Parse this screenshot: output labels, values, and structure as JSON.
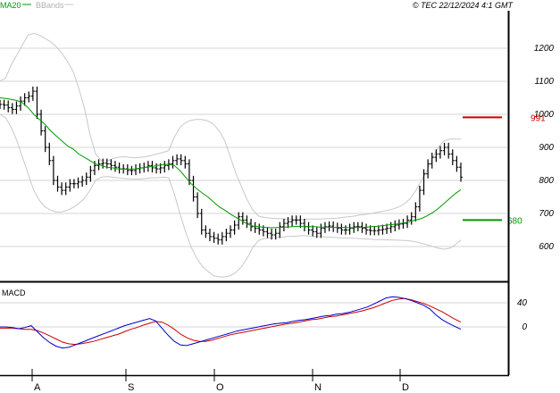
{
  "header": {
    "legend_ma": "MA20",
    "legend_bb": "BBands",
    "copyright": "© TEC 22/12/2024 4:1 GMT"
  },
  "colors": {
    "ma": "#009900",
    "bbands": "#c8c8c8",
    "candles": "#000000",
    "grid": "#d4d4d4",
    "resistance": "#cc0000",
    "support": "#009900",
    "macd": "#0000cc",
    "signal": "#cc0000"
  },
  "chart_data": [
    {
      "type": "line",
      "title": "",
      "x_labels": [
        "A",
        "S",
        "O",
        "N",
        "D"
      ],
      "y_ticks": [
        "1200",
        "1100",
        "1000",
        "900",
        "800",
        "700",
        "600"
      ],
      "ylim": [
        520,
        1240
      ],
      "grid": true,
      "levels": [
        {
          "label": "991",
          "value": 991,
          "color": "#cc0000"
        },
        {
          "label": "680",
          "value": 680,
          "color": "#009900"
        }
      ],
      "series": [
        {
          "name": "MA20",
          "values": [
            1050,
            1048,
            1045,
            1042,
            1035,
            1020,
            1000,
            985,
            970,
            950,
            935,
            920,
            905,
            895,
            880,
            870,
            860,
            850,
            845,
            840,
            838,
            835,
            834,
            834,
            835,
            837,
            840,
            842,
            845,
            848,
            849,
            845,
            830,
            810,
            790,
            775,
            762,
            750,
            735,
            720,
            710,
            698,
            688,
            678,
            668,
            662,
            660,
            658,
            657,
            657,
            658,
            659,
            660,
            661,
            661,
            660,
            660,
            659,
            659,
            658,
            658,
            658,
            657,
            657,
            658,
            658,
            660,
            661,
            663,
            665,
            667,
            669,
            672,
            676,
            680,
            685,
            693,
            703,
            715,
            730,
            745,
            760,
            772
          ]
        },
        {
          "name": "BBands upper",
          "values": [
            1100,
            1110,
            1150,
            1180,
            1210,
            1240,
            1245,
            1240,
            1230,
            1220,
            1205,
            1185,
            1160,
            1130,
            1080,
            1020,
            940,
            880,
            860,
            858,
            865,
            870,
            872,
            870,
            868,
            870,
            872,
            876,
            880,
            885,
            890,
            930,
            960,
            975,
            982,
            985,
            984,
            980,
            970,
            950,
            920,
            870,
            820,
            780,
            740,
            710,
            692,
            688,
            686,
            685,
            684,
            683,
            683,
            682,
            682,
            683,
            683,
            683,
            684,
            685,
            686,
            688,
            690,
            692,
            695,
            697,
            700,
            703,
            706,
            710,
            714,
            720,
            730,
            745,
            770,
            800,
            830,
            870,
            900,
            920,
            925,
            925,
            925
          ]
        },
        {
          "name": "BBands lower",
          "values": [
            1000,
            990,
            960,
            920,
            870,
            820,
            770,
            740,
            720,
            710,
            705,
            705,
            710,
            718,
            730,
            745,
            770,
            800,
            810,
            812,
            810,
            808,
            806,
            805,
            804,
            804,
            806,
            808,
            808,
            810,
            808,
            760,
            700,
            645,
            598,
            565,
            540,
            525,
            512,
            508,
            508,
            512,
            522,
            540,
            565,
            598,
            618,
            624,
            626,
            627,
            628,
            630,
            631,
            632,
            633,
            632,
            631,
            630,
            629,
            628,
            627,
            626,
            626,
            625,
            624,
            623,
            622,
            621,
            621,
            620,
            620,
            619,
            618,
            617,
            614,
            610,
            605,
            600,
            595,
            592,
            595,
            605,
            620
          ]
        },
        {
          "name": "Price",
          "values": [
            1030,
            1028,
            1020,
            1015,
            1025,
            1040,
            1050,
            1055,
            1070,
            1000,
            950,
            900,
            860,
            800,
            780,
            770,
            780,
            790,
            790,
            795,
            800,
            810,
            830,
            845,
            850,
            852,
            850,
            845,
            840,
            835,
            835,
            830,
            830,
            835,
            838,
            840,
            845,
            838,
            835,
            838,
            845,
            850,
            860,
            865,
            860,
            850,
            800,
            750,
            700,
            650,
            640,
            630,
            625,
            620,
            630,
            640,
            650,
            665,
            690,
            680,
            670,
            660,
            655,
            650,
            645,
            640,
            635,
            640,
            660,
            670,
            675,
            680,
            680,
            670,
            660,
            650,
            645,
            640,
            655,
            660,
            662,
            658,
            655,
            650,
            650,
            655,
            660,
            660,
            655,
            650,
            648,
            648,
            650,
            652,
            655,
            660,
            665,
            668,
            670,
            680,
            690,
            720,
            770,
            820,
            850,
            870,
            880,
            890,
            900,
            880,
            860,
            840,
            810
          ]
        }
      ]
    },
    {
      "type": "line",
      "title": "MACD",
      "x_labels": [
        "A",
        "S",
        "O",
        "N",
        "D"
      ],
      "y_ticks": [
        "40",
        "0"
      ],
      "ylim": [
        -40,
        60
      ],
      "grid": true,
      "series": [
        {
          "name": "MACD",
          "values": [
            0,
            0,
            -1,
            -3,
            -1,
            2,
            -8,
            -18,
            -26,
            -32,
            -35,
            -34,
            -30,
            -26,
            -22,
            -18,
            -14,
            -10,
            -6,
            -2,
            2,
            5,
            8,
            11,
            14,
            10,
            -2,
            -14,
            -24,
            -30,
            -31,
            -28,
            -25,
            -22,
            -19,
            -16,
            -13,
            -10,
            -7,
            -5,
            -3,
            -1,
            1,
            3,
            5,
            6,
            7,
            9,
            11,
            12,
            14,
            16,
            18,
            19,
            21,
            22,
            24,
            27,
            30,
            33,
            38,
            43,
            48,
            50,
            49,
            47,
            44,
            40,
            36,
            30,
            20,
            12,
            6,
            1,
            -4
          ]
        },
        {
          "name": "Signal",
          "values": [
            -2,
            -2,
            -2,
            -3,
            -4,
            -4,
            -6,
            -10,
            -15,
            -20,
            -25,
            -28,
            -29,
            -28,
            -26,
            -24,
            -21,
            -18,
            -15,
            -12,
            -8,
            -4,
            -1,
            3,
            6,
            9,
            8,
            3,
            -4,
            -12,
            -18,
            -22,
            -24,
            -24,
            -22,
            -19,
            -16,
            -13,
            -11,
            -9,
            -7,
            -5,
            -3,
            -1,
            1,
            3,
            5,
            6,
            8,
            10,
            12,
            13,
            15,
            17,
            18,
            20,
            22,
            24,
            26,
            29,
            32,
            36,
            40,
            44,
            46,
            47,
            45,
            42,
            39,
            35,
            30,
            25,
            19,
            13,
            8
          ]
        }
      ]
    }
  ]
}
